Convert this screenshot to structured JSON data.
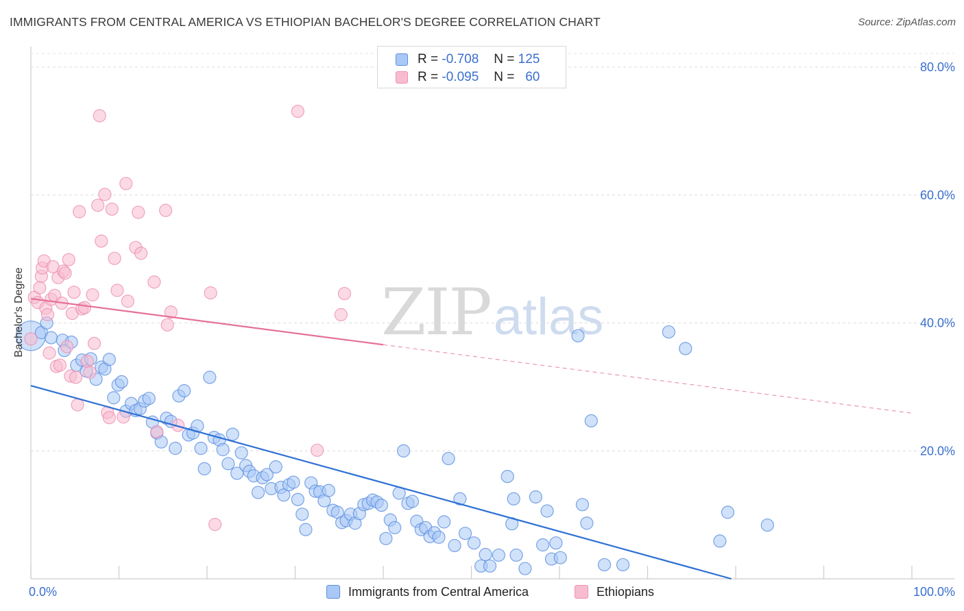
{
  "header": {
    "title": "IMMIGRANTS FROM CENTRAL AMERICA VS ETHIOPIAN BACHELOR'S DEGREE CORRELATION CHART",
    "source": "Source: ZipAtlas.com"
  },
  "watermark": {
    "zip": "ZIP",
    "atlas": "atlas"
  },
  "legend_top": {
    "rows": [
      {
        "r_label": "R =",
        "r_value": "-0.708",
        "n_label": "N =",
        "n_value": "125",
        "color": "#aac8f5"
      },
      {
        "r_label": "R =",
        "r_value": "-0.095",
        "n_label": "N =",
        "n_value": "60",
        "color": "#f8bcd0"
      }
    ]
  },
  "legend_bottom": {
    "items": [
      {
        "label": "Immigrants from Central America",
        "color": "#aac8f5"
      },
      {
        "label": "Ethiopians",
        "color": "#f8bcd0"
      }
    ]
  },
  "chart_data": {
    "type": "scatter",
    "title": "IMMIGRANTS FROM CENTRAL AMERICA VS ETHIOPIAN BACHELOR'S DEGREE CORRELATION CHART",
    "xlabel": "",
    "ylabel": "Bachelor's Degree",
    "xlim": [
      0,
      100
    ],
    "ylim": [
      0,
      80
    ],
    "x_tick_labels": [
      "0.0%",
      "100.0%"
    ],
    "y_ticks": [
      20,
      40,
      60,
      80
    ],
    "y_tick_labels": [
      "20.0%",
      "40.0%",
      "60.0%",
      "80.0%"
    ],
    "grid": true,
    "colors": {
      "blue_fill": "#aac8f5",
      "blue_edge": "#5a8fe0",
      "blue_line": "#2d6fd4",
      "pink_fill": "#f8bcd0",
      "pink_edge": "#ee8fb0",
      "pink_line": "#e5709a",
      "tick_label": "#3a6fcf"
    },
    "series": [
      {
        "name": "Immigrants from Central America",
        "color": "#aac8f5",
        "trend": {
          "x0": 0,
          "y0": 30.2,
          "x1": 79.5,
          "y1": 0,
          "dashed_to": null
        },
        "points": [
          [
            0,
            38,
            2.4
          ],
          [
            1.2,
            38.5,
            1
          ],
          [
            1.8,
            40,
            1
          ],
          [
            2.3,
            37.7,
            1
          ],
          [
            3.6,
            37.3,
            1
          ],
          [
            3.8,
            35.7,
            1
          ],
          [
            4.6,
            37,
            1
          ],
          [
            5.2,
            33.4,
            1
          ],
          [
            5.8,
            34.2,
            1
          ],
          [
            6.3,
            32.5,
            1
          ],
          [
            6.8,
            34.4,
            1
          ],
          [
            7.4,
            31.2,
            1
          ],
          [
            8,
            33.1,
            1
          ],
          [
            8.4,
            32.8,
            1
          ],
          [
            8.9,
            34.3,
            1
          ],
          [
            9.4,
            28.3,
            1
          ],
          [
            9.9,
            30.3,
            1
          ],
          [
            10.3,
            30.8,
            1
          ],
          [
            10.8,
            26.2,
            1
          ],
          [
            11.4,
            27.4,
            1
          ],
          [
            11.9,
            26.3,
            1
          ],
          [
            12.4,
            26.6,
            1
          ],
          [
            12.9,
            27.8,
            1
          ],
          [
            13.4,
            28.2,
            1
          ],
          [
            13.8,
            24.5,
            1
          ],
          [
            14.3,
            22.8,
            1
          ],
          [
            14.8,
            21.4,
            1
          ],
          [
            15.4,
            25.1,
            1
          ],
          [
            15.9,
            24.6,
            1
          ],
          [
            16.4,
            20.4,
            1
          ],
          [
            16.8,
            28.6,
            1
          ],
          [
            17.4,
            29.4,
            1
          ],
          [
            17.9,
            22.5,
            1
          ],
          [
            18.4,
            22.8,
            1
          ],
          [
            18.9,
            23.9,
            1
          ],
          [
            19.3,
            20.4,
            1
          ],
          [
            19.7,
            17.2,
            1
          ],
          [
            20.3,
            31.5,
            1
          ],
          [
            20.8,
            22.1,
            1
          ],
          [
            21.4,
            21.7,
            1
          ],
          [
            21.8,
            20.2,
            1
          ],
          [
            22.4,
            18,
            1
          ],
          [
            22.9,
            22.6,
            1
          ],
          [
            23.4,
            16.5,
            1
          ],
          [
            23.9,
            19.7,
            1
          ],
          [
            24.4,
            17.7,
            1
          ],
          [
            24.8,
            16.8,
            1
          ],
          [
            25.3,
            16.1,
            1
          ],
          [
            25.8,
            13.5,
            1
          ],
          [
            26.3,
            15.8,
            1
          ],
          [
            26.8,
            16.3,
            1
          ],
          [
            27.3,
            14.1,
            1
          ],
          [
            27.8,
            17.5,
            1
          ],
          [
            28.4,
            14.3,
            1
          ],
          [
            28.7,
            13.1,
            1
          ],
          [
            29.3,
            14.7,
            1
          ],
          [
            29.8,
            15.1,
            1
          ],
          [
            30.3,
            12.4,
            1
          ],
          [
            30.8,
            10.1,
            1
          ],
          [
            31.2,
            7.7,
            1
          ],
          [
            31.8,
            15,
            1
          ],
          [
            32.3,
            13.7,
            1
          ],
          [
            32.8,
            13.6,
            1
          ],
          [
            33.3,
            12.2,
            1
          ],
          [
            33.8,
            13.8,
            1
          ],
          [
            34.3,
            10.7,
            1
          ],
          [
            34.8,
            10.4,
            1
          ],
          [
            35.3,
            8.8,
            1
          ],
          [
            35.8,
            9.1,
            1
          ],
          [
            36.3,
            10.1,
            1
          ],
          [
            36.8,
            8.7,
            1
          ],
          [
            37.3,
            10.2,
            1
          ],
          [
            37.8,
            11.6,
            1
          ],
          [
            38.3,
            11.8,
            1
          ],
          [
            38.8,
            12.3,
            1
          ],
          [
            39.3,
            12,
            1
          ],
          [
            39.8,
            11.5,
            1
          ],
          [
            40.3,
            6.3,
            1
          ],
          [
            40.8,
            9.2,
            1
          ],
          [
            41.3,
            8,
            1
          ],
          [
            41.8,
            13.4,
            1
          ],
          [
            42.3,
            20,
            1
          ],
          [
            42.8,
            11.8,
            1
          ],
          [
            43.3,
            12.1,
            1
          ],
          [
            43.8,
            9,
            1
          ],
          [
            44.3,
            7.7,
            1
          ],
          [
            44.8,
            8,
            1
          ],
          [
            45.3,
            6.6,
            1
          ],
          [
            45.8,
            7.2,
            1
          ],
          [
            46.3,
            6.5,
            1
          ],
          [
            46.9,
            8.9,
            1
          ],
          [
            47.4,
            18.8,
            1
          ],
          [
            48.1,
            5.2,
            1
          ],
          [
            48.7,
            12.5,
            1
          ],
          [
            49.3,
            7.1,
            1
          ],
          [
            50.3,
            5.6,
            1
          ],
          [
            51.1,
            2,
            1
          ],
          [
            51.6,
            3.8,
            1
          ],
          [
            52.1,
            2,
            1
          ],
          [
            53.1,
            3.7,
            1
          ],
          [
            54.1,
            16,
            1
          ],
          [
            54.6,
            8.6,
            1
          ],
          [
            54.8,
            12.5,
            1
          ],
          [
            55.1,
            3.7,
            1
          ],
          [
            56.1,
            1.6,
            1
          ],
          [
            57.3,
            12.8,
            1
          ],
          [
            58.1,
            5.3,
            1
          ],
          [
            58.6,
            10.6,
            1
          ],
          [
            59.1,
            3.1,
            1
          ],
          [
            59.6,
            5.6,
            1
          ],
          [
            60.1,
            3.3,
            1
          ],
          [
            62.1,
            38,
            1
          ],
          [
            62.6,
            11.6,
            1
          ],
          [
            63.1,
            8.7,
            1
          ],
          [
            63.6,
            24.7,
            1
          ],
          [
            65.1,
            2.2,
            1
          ],
          [
            67.2,
            2.2,
            1
          ],
          [
            72.4,
            38.6,
            1
          ],
          [
            74.3,
            36,
            1
          ],
          [
            78.2,
            5.9,
            1
          ],
          [
            79.1,
            10.4,
            1
          ],
          [
            83.6,
            8.4,
            1
          ]
        ]
      },
      {
        "name": "Ethiopians",
        "color": "#f8bcd0",
        "trend": {
          "x0": 0,
          "y0": 43.8,
          "x1": 40,
          "y1": 36.6,
          "dashed_to": [
            100,
            25.9
          ]
        },
        "points": [
          [
            0,
            37.5,
            1
          ],
          [
            0.4,
            44,
            1
          ],
          [
            0.8,
            43.2,
            1
          ],
          [
            1,
            45.5,
            1
          ],
          [
            1.2,
            47.3,
            1
          ],
          [
            1.3,
            48.6,
            1
          ],
          [
            1.5,
            49.7,
            1
          ],
          [
            1.7,
            42.3,
            1
          ],
          [
            1.9,
            41.3,
            1
          ],
          [
            2.1,
            35.3,
            1
          ],
          [
            2.3,
            43.7,
            1
          ],
          [
            2.5,
            48.8,
            1
          ],
          [
            2.7,
            44.3,
            1
          ],
          [
            2.9,
            33.2,
            1
          ],
          [
            3.1,
            47.1,
            1
          ],
          [
            3.3,
            33.4,
            1
          ],
          [
            3.5,
            43.1,
            1
          ],
          [
            3.7,
            48.1,
            1
          ],
          [
            3.9,
            47.8,
            1
          ],
          [
            4.1,
            36.3,
            1
          ],
          [
            4.3,
            49.9,
            1
          ],
          [
            4.5,
            31.7,
            1
          ],
          [
            4.7,
            41.5,
            1
          ],
          [
            4.9,
            44.8,
            1
          ],
          [
            5.1,
            31.5,
            1
          ],
          [
            5.3,
            27.2,
            1
          ],
          [
            5.5,
            57.4,
            1
          ],
          [
            5.8,
            42.2,
            1
          ],
          [
            6.1,
            42.4,
            1
          ],
          [
            6.4,
            34,
            1
          ],
          [
            6.7,
            32.3,
            1
          ],
          [
            7,
            44.4,
            1
          ],
          [
            7.2,
            36.8,
            1
          ],
          [
            7.6,
            58.4,
            1
          ],
          [
            7.8,
            72.4,
            1
          ],
          [
            8,
            52.8,
            1
          ],
          [
            8.4,
            60.1,
            1
          ],
          [
            8.7,
            26,
            1
          ],
          [
            8.9,
            25.2,
            1
          ],
          [
            9.2,
            57.8,
            1
          ],
          [
            9.5,
            50.1,
            1
          ],
          [
            9.8,
            45.1,
            1
          ],
          [
            10.5,
            25.3,
            1
          ],
          [
            10.8,
            61.8,
            1
          ],
          [
            11,
            43.4,
            1
          ],
          [
            11.9,
            51.8,
            1
          ],
          [
            12.2,
            57.3,
            1
          ],
          [
            12.5,
            50.9,
            1
          ],
          [
            14,
            46.4,
            1
          ],
          [
            14.3,
            23,
            1
          ],
          [
            15.3,
            57.6,
            1
          ],
          [
            15.5,
            39.7,
            1
          ],
          [
            15.9,
            41.7,
            1
          ],
          [
            16.7,
            24,
            1
          ],
          [
            20.4,
            44.7,
            1
          ],
          [
            20.9,
            8.5,
            1
          ],
          [
            30.3,
            73.1,
            1
          ],
          [
            32.5,
            20.1,
            1
          ],
          [
            35.2,
            41.3,
            1
          ],
          [
            35.6,
            44.6,
            1
          ]
        ]
      }
    ]
  }
}
